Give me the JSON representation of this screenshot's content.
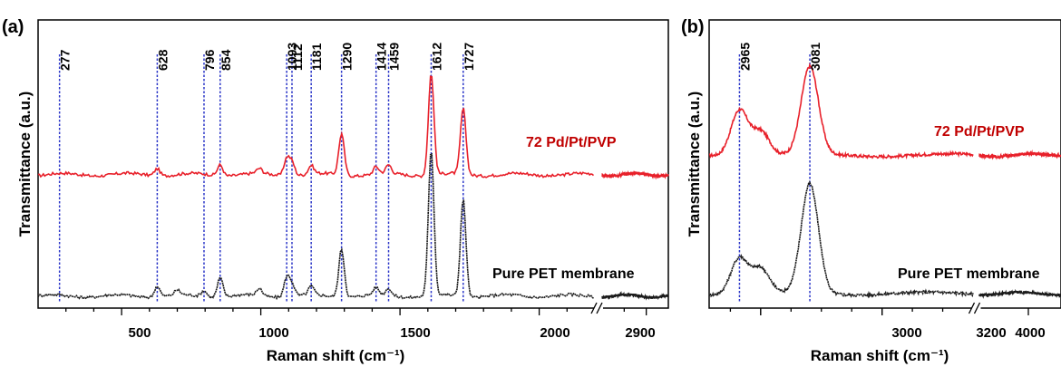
{
  "chart_data": [
    {
      "panel": "(a)",
      "type": "line",
      "xlabel": "Raman shift (cm⁻¹)",
      "ylabel": "Transmittance (a.u.)",
      "x_tick_labels": [
        "500",
        "1000",
        "1500",
        "2000",
        "2900"
      ],
      "axis_break": "between 2000 and 2900",
      "grid": false,
      "legend": "labels placed beside each curve",
      "peak_labels": [
        "277",
        "628",
        "796",
        "854",
        "1093",
        "1112",
        "1181",
        "1290",
        "1414",
        "1459",
        "1612",
        "1727"
      ],
      "peaks": [
        277,
        628,
        796,
        854,
        1093,
        1112,
        1181,
        1290,
        1414,
        1459,
        1612,
        1727
      ],
      "series": [
        {
          "name": "72 Pd/Pt/PVP",
          "color": "#e8202a",
          "baseline": 0.52,
          "peaks": [
            {
              "x": 628,
              "h": 0.03
            },
            {
              "x": 854,
              "h": 0.045
            },
            {
              "x": 995,
              "h": 0.02
            },
            {
              "x": 1093,
              "h": 0.07
            },
            {
              "x": 1112,
              "h": 0.055
            },
            {
              "x": 1181,
              "h": 0.035
            },
            {
              "x": 1290,
              "h": 0.17
            },
            {
              "x": 1414,
              "h": 0.03
            },
            {
              "x": 1459,
              "h": 0.035
            },
            {
              "x": 1612,
              "h": 0.42
            },
            {
              "x": 1727,
              "h": 0.27
            }
          ]
        },
        {
          "name": "Pure PET membrane",
          "color": "#1a1a1a",
          "baseline": 0.02,
          "peaks": [
            {
              "x": 628,
              "h": 0.045
            },
            {
              "x": 700,
              "h": 0.02
            },
            {
              "x": 796,
              "h": 0.025
            },
            {
              "x": 854,
              "h": 0.08
            },
            {
              "x": 995,
              "h": 0.03
            },
            {
              "x": 1093,
              "h": 0.08
            },
            {
              "x": 1112,
              "h": 0.05
            },
            {
              "x": 1181,
              "h": 0.035
            },
            {
              "x": 1290,
              "h": 0.2
            },
            {
              "x": 1414,
              "h": 0.03
            },
            {
              "x": 1459,
              "h": 0.03
            },
            {
              "x": 1612,
              "h": 0.6
            },
            {
              "x": 1727,
              "h": 0.4
            }
          ]
        }
      ]
    },
    {
      "panel": "(b)",
      "type": "line",
      "xlabel": "Raman shift (cm⁻¹)",
      "ylabel": "Transmittance (a.u.)",
      "x_tick_labels": [
        "3000",
        "3200",
        "4000"
      ],
      "axis_break": "between 3200 and 4000",
      "grid": false,
      "legend": "labels placed beside each curve",
      "peak_labels": [
        "2965",
        "3081"
      ],
      "peaks": [
        2965,
        3081
      ],
      "series": [
        {
          "name": "72 Pd/Pt/PVP",
          "color": "#e8202a",
          "baseline": 0.6,
          "peaks": [
            {
              "x": 2965,
              "h": 0.19
            },
            {
              "x": 3000,
              "h": 0.1
            },
            {
              "x": 3081,
              "h": 0.36
            }
          ]
        },
        {
          "name": "Pure PET membrane",
          "color": "#1a1a1a",
          "baseline": 0.03,
          "peaks": [
            {
              "x": 2965,
              "h": 0.15
            },
            {
              "x": 3000,
              "h": 0.1
            },
            {
              "x": 3081,
              "h": 0.45
            }
          ]
        }
      ]
    }
  ]
}
